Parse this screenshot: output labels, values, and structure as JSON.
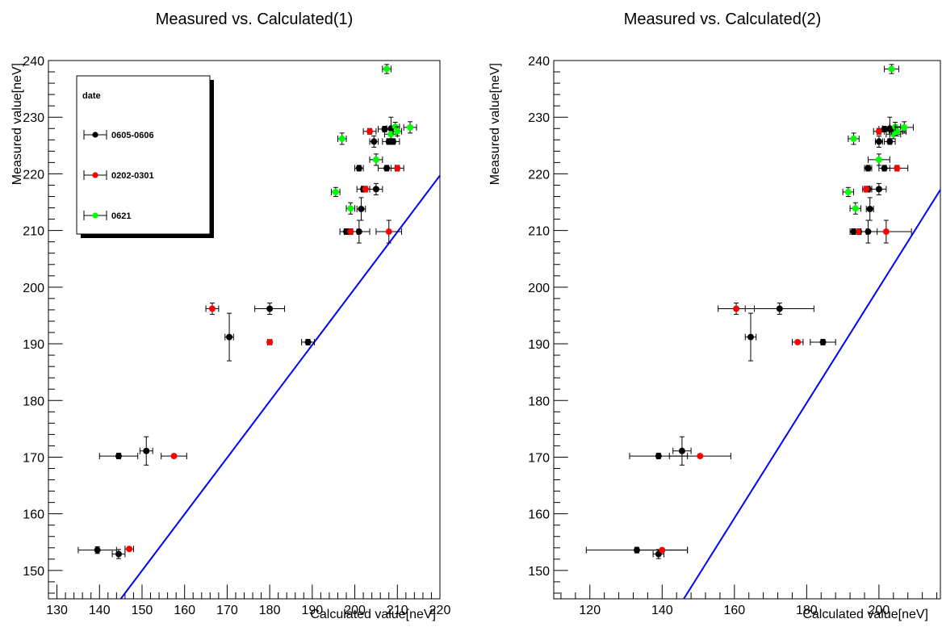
{
  "chart_data": [
    {
      "type": "scatter",
      "title": "Measured vs. Calculated(1)",
      "xlabel": "Calculated value[neV]",
      "ylabel": "Measured value[neV]",
      "xlim": [
        128,
        220
      ],
      "ylim": [
        145,
        240
      ],
      "xticks": [
        130,
        140,
        150,
        160,
        170,
        180,
        190,
        200,
        210,
        220
      ],
      "yticks": [
        150,
        160,
        170,
        180,
        190,
        200,
        210,
        220,
        230,
        240
      ],
      "grid": false,
      "legend": {
        "placement": "top-left",
        "title": "date",
        "entries": [
          "0605-0606",
          "0202-0301",
          "0621"
        ]
      },
      "series": [
        {
          "name": "0605-0606",
          "color": "#000000",
          "points": [
            {
              "x": 139.5,
              "y": 153.6,
              "xerr": 4.5,
              "yerr": 0.6
            },
            {
              "x": 144.5,
              "y": 152.9,
              "xerr": 1.5,
              "yerr": 0.8
            },
            {
              "x": 144.5,
              "y": 170.2,
              "xerr": 4.5,
              "yerr": 0.5
            },
            {
              "x": 151.0,
              "y": 171.1,
              "xerr": 1.5,
              "yerr": 2.5
            },
            {
              "x": 170.5,
              "y": 191.2,
              "xerr": 1.0,
              "yerr": 4.2
            },
            {
              "x": 180.0,
              "y": 196.2,
              "xerr": 3.5,
              "yerr": 1.0
            },
            {
              "x": 189.0,
              "y": 190.3,
              "xerr": 1.5,
              "yerr": 0.5
            },
            {
              "x": 198.0,
              "y": 209.8,
              "xerr": 1.5,
              "yerr": 0.5
            },
            {
              "x": 201.0,
              "y": 209.8,
              "xerr": 2.5,
              "yerr": 2.0
            },
            {
              "x": 201.0,
              "y": 221.0,
              "xerr": 1.0,
              "yerr": 0.5
            },
            {
              "x": 201.5,
              "y": 213.8,
              "xerr": 1.0,
              "yerr": 2.0
            },
            {
              "x": 202.0,
              "y": 217.3,
              "xerr": 1.5,
              "yerr": 0.5
            },
            {
              "x": 205.0,
              "y": 217.3,
              "xerr": 1.5,
              "yerr": 1.0
            },
            {
              "x": 204.5,
              "y": 225.7,
              "xerr": 1.0,
              "yerr": 1.0
            },
            {
              "x": 207.0,
              "y": 227.9,
              "xerr": 1.5,
              "yerr": 0.5
            },
            {
              "x": 208.0,
              "y": 225.7,
              "xerr": 1.5,
              "yerr": 0.5
            },
            {
              "x": 208.5,
              "y": 228.0,
              "xerr": 1.0,
              "yerr": 2.0
            },
            {
              "x": 209.0,
              "y": 225.7,
              "xerr": 1.5,
              "yerr": 0.5
            },
            {
              "x": 207.5,
              "y": 221.0,
              "xerr": 2.0,
              "yerr": 0.5
            }
          ]
        },
        {
          "name": "0202-0301",
          "color": "#ff0000",
          "points": [
            {
              "x": 147.0,
              "y": 153.8,
              "xerr": 1.0,
              "yerr": 0.3
            },
            {
              "x": 157.5,
              "y": 170.2,
              "xerr": 3.0,
              "yerr": 0.3
            },
            {
              "x": 166.5,
              "y": 196.2,
              "xerr": 1.5,
              "yerr": 1.0
            },
            {
              "x": 180.0,
              "y": 190.3,
              "xerr": 0.5,
              "yerr": 0.3
            },
            {
              "x": 199.0,
              "y": 209.8,
              "xerr": 1.5,
              "yerr": 0.5
            },
            {
              "x": 202.5,
              "y": 217.3,
              "xerr": 1.0,
              "yerr": 0.5
            },
            {
              "x": 203.5,
              "y": 227.5,
              "xerr": 1.5,
              "yerr": 0.5
            },
            {
              "x": 208.0,
              "y": 209.8,
              "xerr": 3.0,
              "yerr": 2.0
            },
            {
              "x": 210.0,
              "y": 221.0,
              "xerr": 1.5,
              "yerr": 0.5
            }
          ]
        },
        {
          "name": "0621",
          "color": "#00ff00",
          "points": [
            {
              "x": 195.5,
              "y": 216.8,
              "xerr": 1.0,
              "yerr": 0.8
            },
            {
              "x": 197.0,
              "y": 226.2,
              "xerr": 1.0,
              "yerr": 1.0
            },
            {
              "x": 199.0,
              "y": 213.9,
              "xerr": 1.0,
              "yerr": 1.0
            },
            {
              "x": 205.0,
              "y": 222.5,
              "xerr": 1.5,
              "yerr": 1.0
            },
            {
              "x": 207.5,
              "y": 238.5,
              "xerr": 1.0,
              "yerr": 0.8
            },
            {
              "x": 208.5,
              "y": 227.0,
              "xerr": 1.5,
              "yerr": 0.8
            },
            {
              "x": 209.5,
              "y": 228.3,
              "xerr": 1.0,
              "yerr": 0.8
            },
            {
              "x": 210.0,
              "y": 227.5,
              "xerr": 1.0,
              "yerr": 0.8
            },
            {
              "x": 213.0,
              "y": 228.2,
              "xerr": 1.5,
              "yerr": 1.0
            }
          ]
        }
      ],
      "reference_line": {
        "color": "#0000ff",
        "points": [
          [
            145,
            145
          ],
          [
            220,
            219.7
          ]
        ]
      }
    },
    {
      "type": "scatter",
      "title": "Measured vs. Calculated(2)",
      "xlabel": "Calculated value[neV]",
      "ylabel": "Measured value[neV]",
      "xlim": [
        110,
        217
      ],
      "ylim": [
        145,
        240
      ],
      "xticks": [
        120,
        140,
        160,
        180,
        200
      ],
      "yticks": [
        150,
        160,
        170,
        180,
        190,
        200,
        210,
        220,
        230,
        240
      ],
      "grid": false,
      "series": [
        {
          "name": "0605-0606",
          "color": "#000000",
          "points": [
            {
              "x": 133.0,
              "y": 153.6,
              "xerr": 14.0,
              "yerr": 0.5
            },
            {
              "x": 139.0,
              "y": 152.9,
              "xerr": 1.5,
              "yerr": 0.8
            },
            {
              "x": 139.0,
              "y": 170.2,
              "xerr": 8.0,
              "yerr": 0.5
            },
            {
              "x": 145.5,
              "y": 171.1,
              "xerr": 2.5,
              "yerr": 2.5
            },
            {
              "x": 164.5,
              "y": 191.2,
              "xerr": 1.5,
              "yerr": 4.2
            },
            {
              "x": 172.5,
              "y": 196.2,
              "xerr": 9.5,
              "yerr": 1.0
            },
            {
              "x": 184.5,
              "y": 190.3,
              "xerr": 3.5,
              "yerr": 0.5
            },
            {
              "x": 193.0,
              "y": 209.8,
              "xerr": 1.0,
              "yerr": 0.5
            },
            {
              "x": 197.0,
              "y": 209.8,
              "xerr": 2.5,
              "yerr": 2.0
            },
            {
              "x": 197.0,
              "y": 221.0,
              "xerr": 1.0,
              "yerr": 0.5
            },
            {
              "x": 197.5,
              "y": 213.8,
              "xerr": 1.0,
              "yerr": 2.0
            },
            {
              "x": 197.0,
              "y": 217.3,
              "xerr": 1.0,
              "yerr": 0.5
            },
            {
              "x": 200.0,
              "y": 217.3,
              "xerr": 2.0,
              "yerr": 1.0
            },
            {
              "x": 200.0,
              "y": 225.7,
              "xerr": 1.0,
              "yerr": 1.0
            },
            {
              "x": 201.5,
              "y": 227.9,
              "xerr": 1.5,
              "yerr": 0.5
            },
            {
              "x": 203.0,
              "y": 225.7,
              "xerr": 1.5,
              "yerr": 0.5
            },
            {
              "x": 203.0,
              "y": 228.0,
              "xerr": 2.0,
              "yerr": 2.0
            },
            {
              "x": 203.5,
              "y": 227.5,
              "xerr": 4.0,
              "yerr": 0.5
            },
            {
              "x": 201.5,
              "y": 221.0,
              "xerr": 1.5,
              "yerr": 0.5
            }
          ]
        },
        {
          "name": "0202-0301",
          "color": "#ff0000",
          "points": [
            {
              "x": 140.0,
              "y": 153.6,
              "xerr": 7.0,
              "yerr": 0.3
            },
            {
              "x": 150.5,
              "y": 170.2,
              "xerr": 8.5,
              "yerr": 0.3
            },
            {
              "x": 160.5,
              "y": 196.2,
              "xerr": 5.0,
              "yerr": 1.0
            },
            {
              "x": 177.5,
              "y": 190.3,
              "xerr": 1.5,
              "yerr": 0.3
            },
            {
              "x": 194.5,
              "y": 209.8,
              "xerr": 2.0,
              "yerr": 0.5
            },
            {
              "x": 196.5,
              "y": 217.3,
              "xerr": 1.0,
              "yerr": 0.5
            },
            {
              "x": 200.0,
              "y": 227.5,
              "xerr": 1.5,
              "yerr": 0.5
            },
            {
              "x": 202.0,
              "y": 209.8,
              "xerr": 7.0,
              "yerr": 2.0
            },
            {
              "x": 205.0,
              "y": 221.0,
              "xerr": 3.0,
              "yerr": 0.5
            }
          ]
        },
        {
          "name": "0621",
          "color": "#00ff00",
          "points": [
            {
              "x": 191.5,
              "y": 216.8,
              "xerr": 1.5,
              "yerr": 0.8
            },
            {
              "x": 193.0,
              "y": 226.2,
              "xerr": 1.5,
              "yerr": 1.0
            },
            {
              "x": 193.5,
              "y": 213.9,
              "xerr": 1.5,
              "yerr": 1.0
            },
            {
              "x": 200.0,
              "y": 222.5,
              "xerr": 3.0,
              "yerr": 1.0
            },
            {
              "x": 203.5,
              "y": 238.5,
              "xerr": 2.0,
              "yerr": 0.8
            },
            {
              "x": 204.0,
              "y": 227.0,
              "xerr": 2.0,
              "yerr": 0.8
            },
            {
              "x": 204.5,
              "y": 228.3,
              "xerr": 1.5,
              "yerr": 0.8
            },
            {
              "x": 205.0,
              "y": 227.5,
              "xerr": 1.5,
              "yerr": 0.8
            },
            {
              "x": 207.0,
              "y": 228.2,
              "xerr": 2.5,
              "yerr": 1.0
            }
          ]
        }
      ],
      "reference_line": {
        "color": "#0000ff",
        "points": [
          [
            146,
            145
          ],
          [
            217,
            217.2
          ]
        ]
      }
    }
  ]
}
